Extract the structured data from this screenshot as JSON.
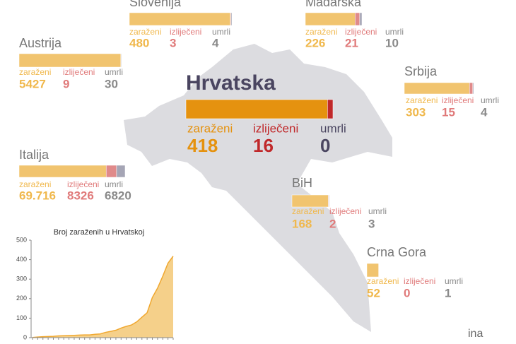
{
  "legend_labels": {
    "infected": "zaraženi",
    "recovered": "izliječeni",
    "deaths": "umrli"
  },
  "countries": [
    {
      "name": "Slovenija",
      "infected": 480,
      "recovered": 3,
      "deaths": 4
    },
    {
      "name": "Mađarska",
      "infected": 226,
      "recovered": 21,
      "deaths": 10
    },
    {
      "name": "Austrija",
      "infected": 5427,
      "recovered": 9,
      "deaths": 30
    },
    {
      "name": "Hrvatska",
      "infected": 418,
      "recovered": 16,
      "deaths": 0
    },
    {
      "name": "Srbija",
      "infected": 303,
      "recovered": 15,
      "deaths": 4
    },
    {
      "name": "Italija",
      "infected": {
        "value": 69716,
        "label": "69.716"
      },
      "recovered": 8326,
      "deaths": 6820
    },
    {
      "name": "BiH",
      "infected": 168,
      "recovered": 2,
      "deaths": 3
    },
    {
      "name": "Crna Gora",
      "infected": 52,
      "recovered": 0,
      "deaths": 1
    }
  ],
  "logo": "ina",
  "chart_data": {
    "type": "area",
    "title": "Broj zaraženih u Hrvatskoj",
    "color": "#f5d08a",
    "line_color": "#f0a830",
    "categories": [
      null,
      null,
      null,
      null,
      null,
      null,
      null,
      null,
      null,
      null,
      null,
      null,
      null,
      null,
      null,
      null,
      null,
      null,
      null,
      null,
      null,
      null,
      null,
      null,
      null,
      null,
      null,
      null
    ],
    "values": [
      1,
      3,
      5,
      6,
      7,
      9,
      10,
      11,
      12,
      13,
      14,
      14,
      17,
      19,
      27,
      32,
      38,
      49,
      58,
      65,
      81,
      105,
      128,
      206,
      254,
      315,
      382,
      418
    ],
    "ylim": [
      0,
      500
    ],
    "yticks": [
      0,
      100,
      200,
      300,
      400,
      500
    ]
  }
}
